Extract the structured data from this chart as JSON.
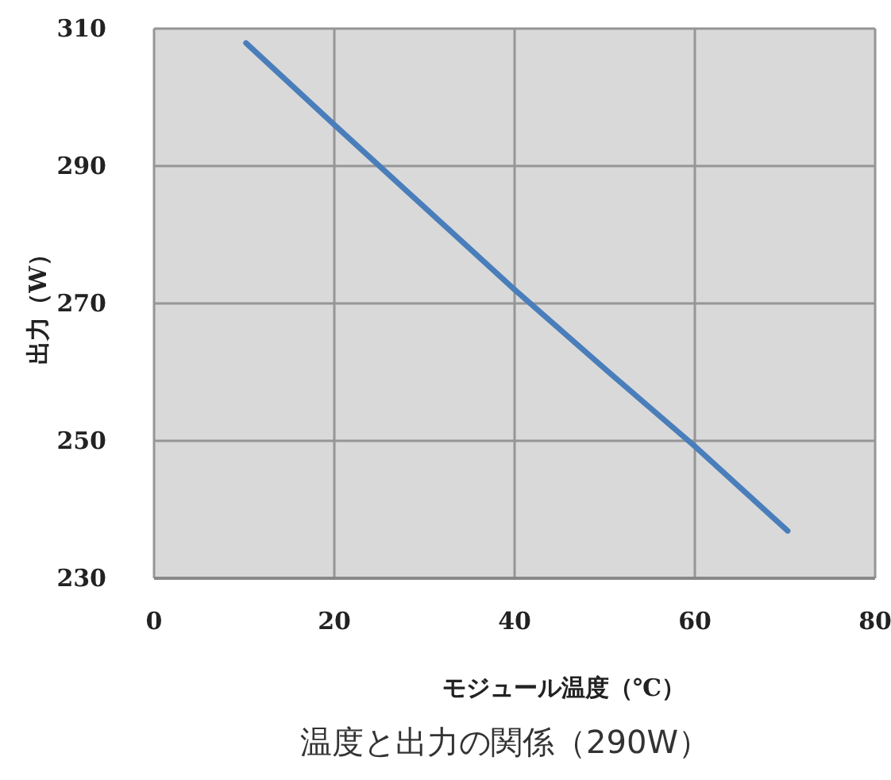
{
  "chart_data": {
    "type": "line",
    "title": "温度と出力の関係（290W）",
    "xlabel": "モジュール温度（℃）",
    "ylabel": "出力（W）",
    "x": [
      10.2,
      20,
      30,
      40,
      50,
      60,
      70.3
    ],
    "series": [
      {
        "color": "#4a7ebb",
        "values": [
          307.9,
          296,
          284,
          272,
          260.5,
          249.2,
          236.9
        ]
      }
    ],
    "xlim": [
      0,
      80
    ],
    "xticks": [
      0,
      20,
      40,
      60,
      80
    ],
    "ylim": [
      230,
      310
    ],
    "yticks": [
      230,
      250,
      270,
      290,
      310
    ],
    "grid": true,
    "marker": "none",
    "line_style": "solid"
  }
}
